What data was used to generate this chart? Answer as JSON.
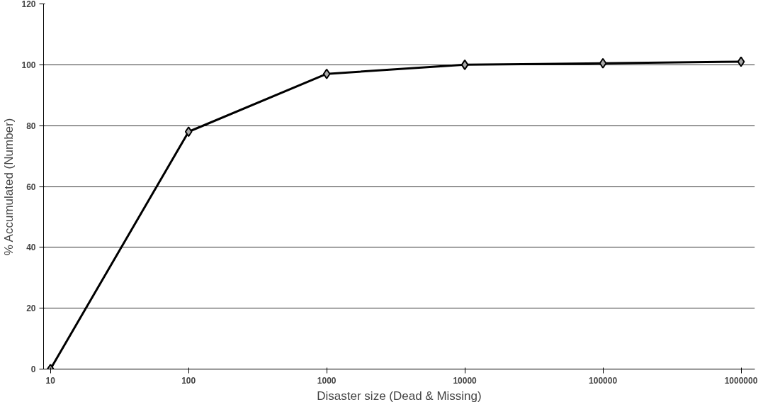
{
  "chart_data": {
    "type": "line",
    "xlabel": "Disaster size (Dead & Missing)",
    "ylabel": "% Accumulated (Number)",
    "categories": [
      "10",
      "100",
      "1000",
      "10000",
      "100000",
      "1000000"
    ],
    "series": [
      {
        "color": "#000000",
        "values": [
          0,
          78,
          97,
          100,
          100.5,
          101
        ]
      }
    ],
    "ylim": [
      0,
      120
    ],
    "yticks": [
      0,
      20,
      40,
      60,
      80,
      100,
      120
    ],
    "grid": "y",
    "marker": "diamond",
    "line_style": "solid"
  }
}
